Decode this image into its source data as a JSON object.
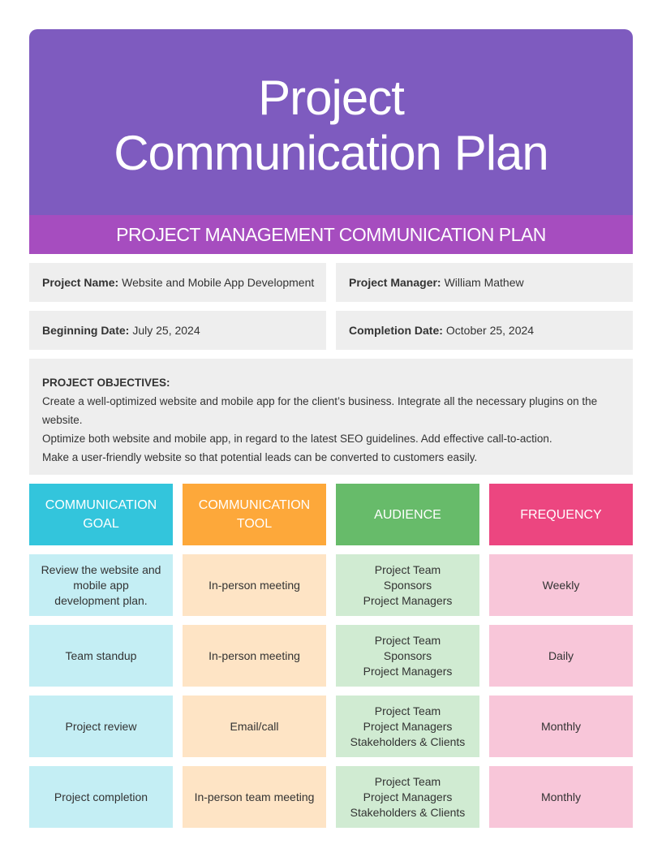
{
  "header": {
    "title": "Project Communication Plan",
    "subtitle": "PROJECT MANAGEMENT COMMUNICATION PLAN"
  },
  "info": [
    {
      "label": "Project Name:",
      "value": "Website and Mobile App Development"
    },
    {
      "label": "Project Manager:",
      "value": "William Mathew"
    },
    {
      "label": "Beginning Date:",
      "value": "July 25, 2024"
    },
    {
      "label": "Completion Date:",
      "value": "October 25, 2024"
    }
  ],
  "objectives": {
    "title": "PROJECT OBJECTIVES:",
    "lines": [
      "Create a well-optimized website and mobile app for the client’s business. Integrate all the necessary plugins on the website.",
      "Optimize both website and mobile app, in regard to the latest SEO guidelines. Add effective call-to-action.",
      "Make a user-friendly website so that potential leads can be converted to customers easily."
    ]
  },
  "table": {
    "headers": [
      "COMMUNICATION GOAL",
      "COMMUNICATION TOOL",
      "AUDIENCE",
      "FREQUENCY"
    ],
    "rows": [
      [
        "Review the website and mobile app development plan.",
        "In-person meeting",
        [
          "Project Team",
          "Sponsors",
          "Project Managers"
        ],
        "Weekly"
      ],
      [
        "Team standup",
        "In-person meeting",
        [
          "Project Team",
          "Sponsors",
          "Project Managers"
        ],
        "Daily"
      ],
      [
        "Project review",
        "Email/call",
        [
          "Project Team",
          "Project Managers",
          "Stakeholders & Clients"
        ],
        "Monthly"
      ],
      [
        "Project completion",
        "In-person team meeting",
        [
          "Project Team",
          "Project Managers",
          "Stakeholders & Clients"
        ],
        "Monthly"
      ]
    ]
  }
}
